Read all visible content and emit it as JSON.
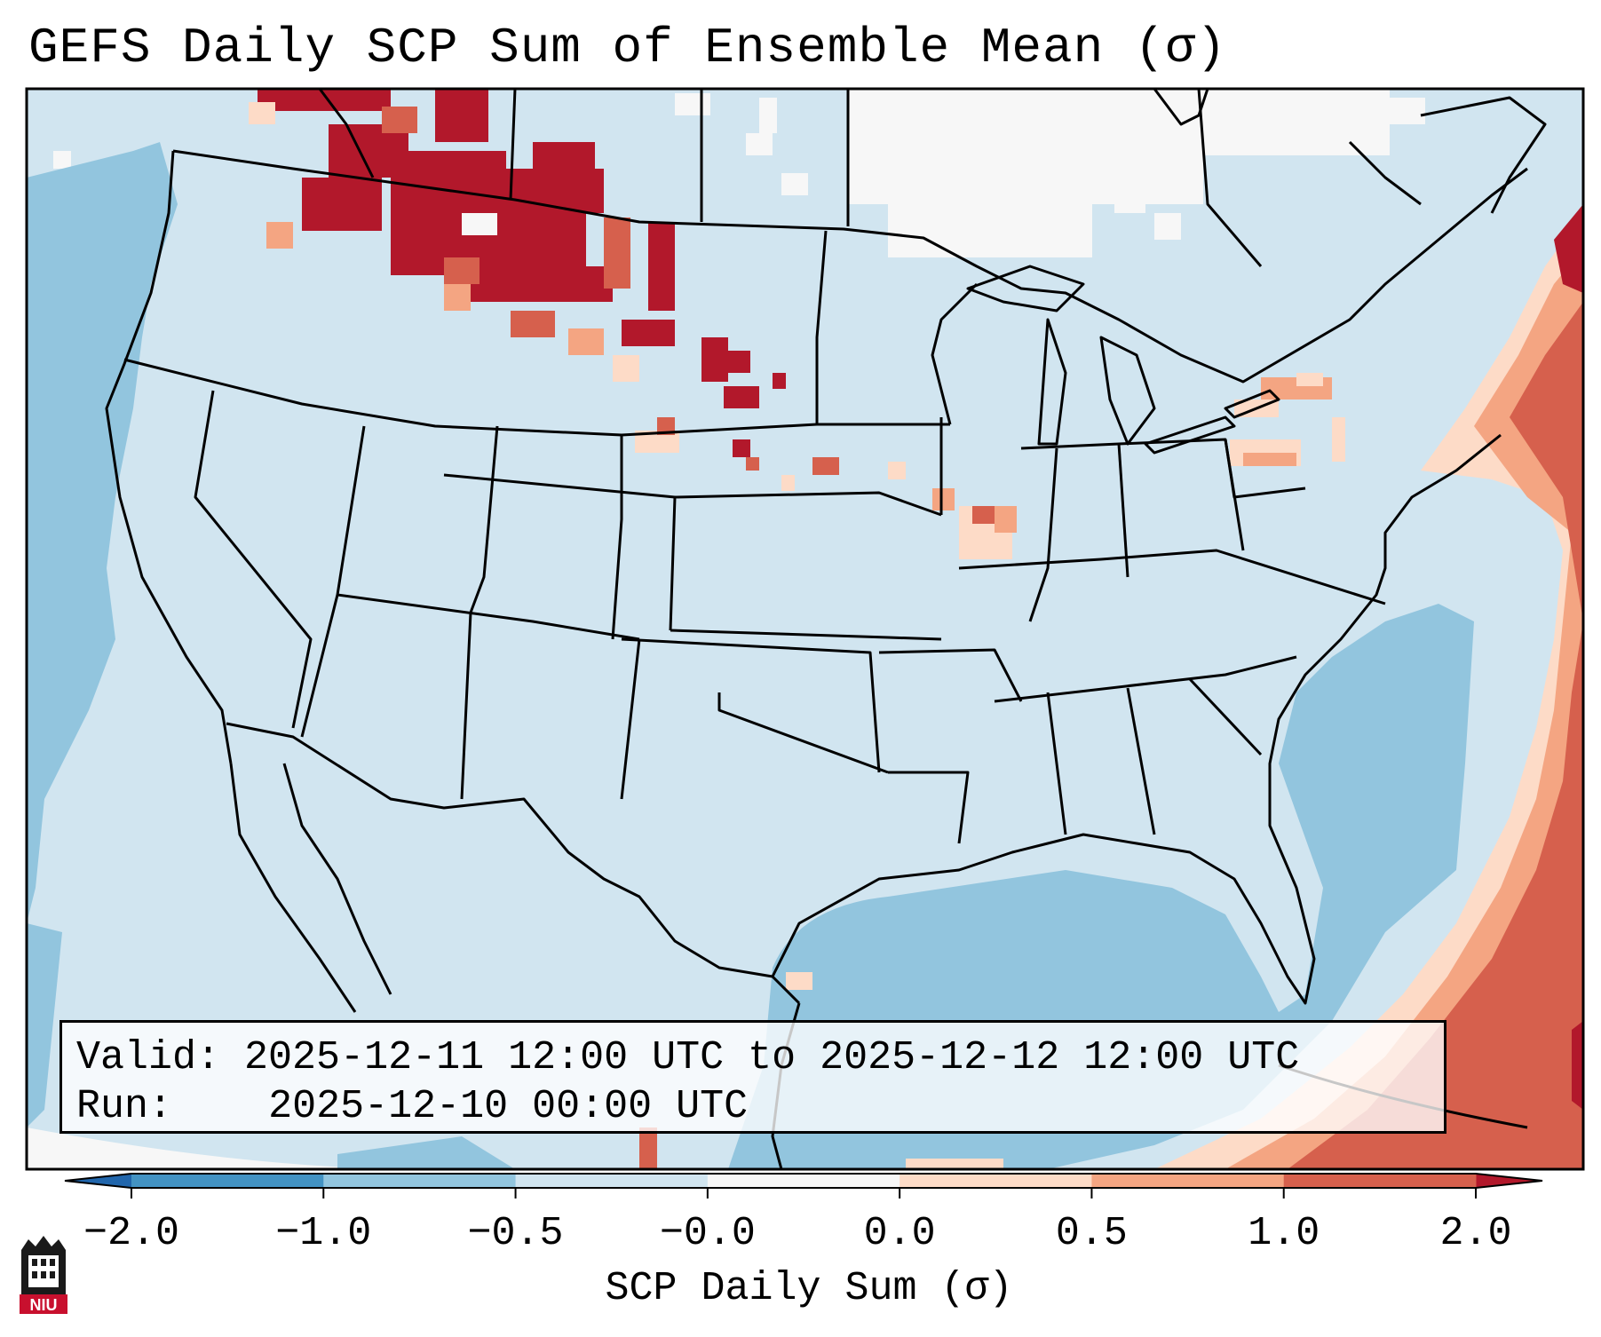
{
  "title": "GEFS Daily SCP Sum of Ensemble Mean (σ)",
  "info": {
    "valid_label": "Valid:",
    "valid_value": "2025-12-11 12:00 UTC to 2025-12-12 12:00 UTC",
    "run_label": "Run:",
    "run_value": "2025-12-10 00:00 UTC"
  },
  "colorbar": {
    "label": "SCP Daily Sum (σ)",
    "ticks": [
      "−2.0",
      "−1.0",
      "−0.5",
      "−0.0",
      "0.0",
      "0.5",
      "1.0",
      "2.0"
    ],
    "colors": [
      "#4393c3",
      "#92c5de",
      "#d1e5f0",
      "#f7f7f7",
      "#fddbc7",
      "#f4a582",
      "#d6604d"
    ],
    "extend_min_color": "#2166ac",
    "extend_max_color": "#b2182b"
  },
  "map": {
    "background_color": "#d1e5f0",
    "boundary_color": "#000000"
  },
  "logo": {
    "text": "NIU"
  }
}
